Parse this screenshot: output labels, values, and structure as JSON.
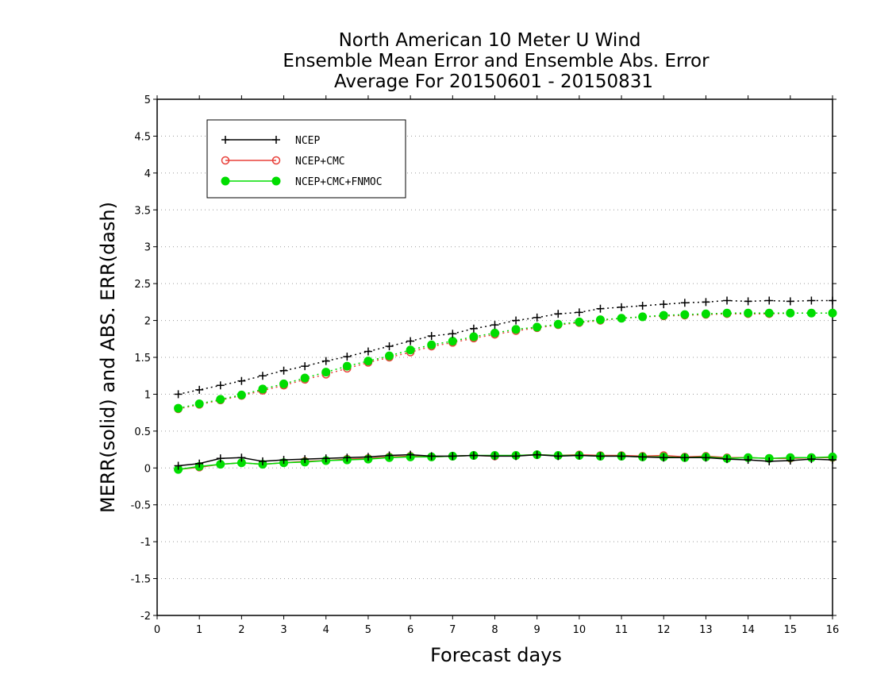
{
  "chart_data": {
    "type": "line",
    "title_lines": [
      "North American 10 Meter U Wind",
      "Ensemble Mean Error and Ensemble Abs. Error",
      "Average For 20150601 - 20150831"
    ],
    "xlabel": "Forecast days",
    "ylabel": "MERR(solid) and ABS. ERR(dash)",
    "xlim": [
      0,
      16
    ],
    "ylim": [
      -2,
      5
    ],
    "xticks": [
      "0",
      "1",
      "2",
      "3",
      "4",
      "5",
      "6",
      "7",
      "8",
      "9",
      "10",
      "11",
      "12",
      "13",
      "14",
      "15",
      "16"
    ],
    "yticks": [
      "-2",
      "-1.5",
      "-1",
      "-0.5",
      "0",
      "0.5",
      "1",
      "1.5",
      "2",
      "2.5",
      "3",
      "3.5",
      "4",
      "4.5",
      "5"
    ],
    "grid": "horizontal dotted",
    "legend_position": "top-left",
    "x": [
      0.5,
      1,
      1.5,
      2,
      2.5,
      3,
      3.5,
      4,
      4.5,
      5,
      5.5,
      6,
      6.5,
      7,
      7.5,
      8,
      8.5,
      9,
      9.5,
      10,
      10.5,
      11,
      11.5,
      12,
      12.5,
      13,
      13.5,
      14,
      14.5,
      15,
      15.5,
      16
    ],
    "series": [
      {
        "name": "NCEP",
        "color": "#000000",
        "marker": "plus",
        "merr": [
          0.03,
          0.06,
          0.13,
          0.14,
          0.09,
          0.11,
          0.12,
          0.13,
          0.14,
          0.15,
          0.17,
          0.18,
          0.16,
          0.16,
          0.17,
          0.16,
          0.16,
          0.18,
          0.16,
          0.17,
          0.16,
          0.16,
          0.15,
          0.14,
          0.14,
          0.14,
          0.12,
          0.11,
          0.09,
          0.1,
          0.12,
          0.11
        ],
        "abs_err": [
          1.0,
          1.06,
          1.12,
          1.18,
          1.25,
          1.32,
          1.38,
          1.45,
          1.51,
          1.58,
          1.65,
          1.72,
          1.79,
          1.82,
          1.89,
          1.94,
          2.0,
          2.04,
          2.09,
          2.11,
          2.16,
          2.18,
          2.2,
          2.22,
          2.24,
          2.25,
          2.27,
          2.26,
          2.27,
          2.26,
          2.27,
          2.27
        ]
      },
      {
        "name": "NCEP+CMC",
        "color": "#e8403a",
        "marker": "open-circle",
        "merr": [
          -0.02,
          0.01,
          0.05,
          0.07,
          0.05,
          0.07,
          0.09,
          0.1,
          0.12,
          0.13,
          0.15,
          0.16,
          0.15,
          0.16,
          0.17,
          0.16,
          0.17,
          0.18,
          0.17,
          0.18,
          0.17,
          0.17,
          0.16,
          0.17,
          0.15,
          0.16,
          0.14,
          0.14,
          0.13,
          0.13,
          0.14,
          0.14
        ],
        "abs_err": [
          0.8,
          0.86,
          0.92,
          0.98,
          1.05,
          1.12,
          1.2,
          1.27,
          1.35,
          1.43,
          1.5,
          1.57,
          1.65,
          1.7,
          1.76,
          1.81,
          1.86,
          1.9,
          1.94,
          1.97,
          2.0,
          2.03,
          2.05,
          2.06,
          2.07,
          2.08,
          2.09,
          2.09,
          2.09,
          2.1,
          2.1,
          2.1
        ]
      },
      {
        "name": "NCEP+CMC+FNMOC",
        "color": "#00dd00",
        "marker": "filled-circle",
        "merr": [
          -0.02,
          0.02,
          0.05,
          0.07,
          0.05,
          0.07,
          0.08,
          0.1,
          0.11,
          0.12,
          0.14,
          0.15,
          0.15,
          0.16,
          0.17,
          0.17,
          0.17,
          0.18,
          0.17,
          0.17,
          0.16,
          0.16,
          0.15,
          0.15,
          0.14,
          0.15,
          0.13,
          0.14,
          0.13,
          0.14,
          0.14,
          0.15
        ],
        "abs_err": [
          0.81,
          0.87,
          0.93,
          0.99,
          1.07,
          1.14,
          1.22,
          1.3,
          1.38,
          1.45,
          1.52,
          1.6,
          1.67,
          1.72,
          1.78,
          1.83,
          1.88,
          1.91,
          1.95,
          1.98,
          2.01,
          2.03,
          2.05,
          2.07,
          2.08,
          2.09,
          2.1,
          2.1,
          2.1,
          2.1,
          2.1,
          2.1
        ]
      }
    ]
  }
}
